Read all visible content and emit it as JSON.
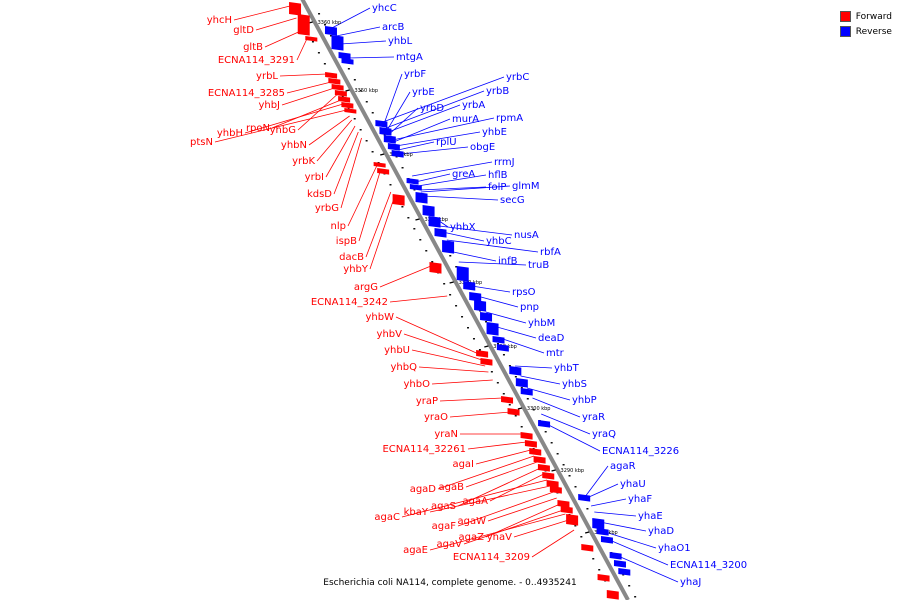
{
  "legend": {
    "forward_label": "Forward",
    "reverse_label": "Reverse",
    "forward_color": "#ff0000",
    "reverse_color": "#0000ff"
  },
  "caption": "Escherichia coli NA114, complete genome. - 0..4935241",
  "colors": {
    "axis": "#888888",
    "forward": "#ff0000",
    "reverse": "#0000ff",
    "tick": "#000000"
  },
  "scale_ticks": [
    "3360 kbp",
    "3350 kbp",
    "3340 kbp",
    "3330 kbp",
    "3320 kbp",
    "3310 kbp",
    "3300 kbp",
    "3290 kbp",
    "3280 kbp"
  ],
  "reverse_labels": [
    "yhcC",
    "arcB",
    "yhbL",
    "mtgA",
    "yrbC",
    "yrbF",
    "yrbB",
    "yrbE",
    "yrbA",
    "yrbD",
    "rpmA",
    "murA",
    "yhbE",
    "rplU",
    "obgE",
    "rrmJ",
    "greA",
    "hflB",
    "folP",
    "glmM",
    "secG",
    "yhbX",
    "nusA",
    "yhbC",
    "rbfA",
    "infB",
    "truB",
    "rpsO",
    "pnp",
    "yhbM",
    "deaD",
    "mtr",
    "yhbT",
    "yhbS",
    "yhbP",
    "yraR",
    "yraQ",
    "ECNA114_3226",
    "agaR",
    "yhaU",
    "yhaF",
    "yhaE",
    "yhaD",
    "yhaO1",
    "ECNA114_3200",
    "yhaJ"
  ],
  "forward_labels": [
    "yhcH",
    "gltD",
    "gltB",
    "ECNA114_3291",
    "yrbL",
    "ECNA114_3285",
    "yhbJ",
    "yhbG",
    "rpoN",
    "yhbH",
    "ptsN",
    "yhbN",
    "yrbK",
    "yrbI",
    "kdsD",
    "yrbG",
    "nlp",
    "ispB",
    "dacB",
    "yhbY",
    "argG",
    "ECNA114_3242",
    "yhbW",
    "yhbV",
    "yhbU",
    "yhbQ",
    "yhbO",
    "yraP",
    "yraO",
    "yraN",
    "ECNA114_32261",
    "agaI",
    "agaD",
    "agaB",
    "agaS",
    "agaA",
    "agaC",
    "kbaY",
    "agaF",
    "agaW",
    "agaZ",
    "agaV",
    "agaE",
    "yhaV",
    "ECNA114_3209"
  ]
}
